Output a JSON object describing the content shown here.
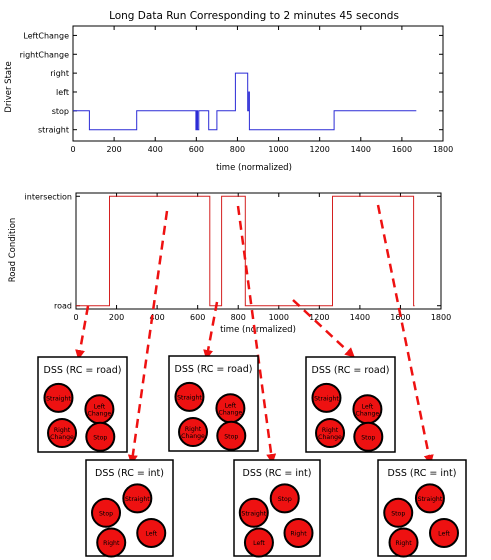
{
  "chart_data": [
    {
      "type": "line",
      "title": "Long Data Run Corresponding to 2 minutes 45 seconds",
      "xlabel": "time (normalized)",
      "ylabel": "Driver State",
      "xlim": [
        0,
        1800
      ],
      "x_ticks": [
        0,
        200,
        400,
        600,
        800,
        1000,
        1200,
        1400,
        1600,
        1800
      ],
      "x_tick_labels": [
        "0",
        "200",
        "400",
        "600",
        "800",
        "1000",
        "1200",
        "1400",
        "1600",
        "1800"
      ],
      "y_categories": [
        "straight",
        "stop",
        "left",
        "right",
        "rightChange",
        "LeftChange"
      ],
      "ylim": [
        -0.6,
        5.5
      ],
      "grid": false,
      "color": "#2b2bd6",
      "series": [
        {
          "points": [
            [
              0,
              1
            ],
            [
              80,
              1
            ],
            [
              80,
              0
            ],
            [
              310,
              0
            ],
            [
              310,
              1
            ],
            [
              598,
              1
            ],
            [
              598,
              0
            ],
            [
              602,
              0
            ],
            [
              602,
              1
            ],
            [
              606,
              1
            ],
            [
              606,
              0
            ],
            [
              612,
              0
            ],
            [
              612,
              1
            ],
            [
              660,
              1
            ],
            [
              660,
              0
            ],
            [
              700,
              0
            ],
            [
              700,
              1
            ],
            [
              790,
              1
            ],
            [
              790,
              3
            ],
            [
              850,
              3
            ],
            [
              850,
              1
            ],
            [
              855,
              1
            ],
            [
              855,
              2
            ],
            [
              858,
              2
            ],
            [
              858,
              0
            ],
            [
              1270,
              0
            ],
            [
              1270,
              1
            ],
            [
              1670,
              1
            ]
          ]
        }
      ]
    },
    {
      "type": "line",
      "title": "",
      "xlabel": "time (normalized)",
      "ylabel": "Road Condition",
      "xlim": [
        0,
        1800
      ],
      "x_ticks": [
        0,
        200,
        400,
        600,
        800,
        1000,
        1200,
        1400,
        1600,
        1800
      ],
      "x_tick_labels": [
        "0",
        "200",
        "400",
        "600",
        "800",
        "1000",
        "1200",
        "1400",
        "1600",
        "1800"
      ],
      "y_categories": [
        "road",
        "intersection"
      ],
      "ylim": [
        -0.03,
        1.03
      ],
      "grid": false,
      "color": "#d42020",
      "series": [
        {
          "points": [
            [
              0,
              0
            ],
            [
              165,
              0
            ],
            [
              165,
              1
            ],
            [
              660,
              1
            ],
            [
              660,
              0
            ],
            [
              718,
              0
            ],
            [
              718,
              1
            ],
            [
              835,
              1
            ],
            [
              835,
              0
            ],
            [
              1265,
              0
            ],
            [
              1265,
              1
            ],
            [
              1665,
              1
            ],
            [
              1665,
              0
            ],
            [
              1670,
              0
            ]
          ]
        }
      ]
    }
  ],
  "dss_boxes": [
    {
      "title": "DSS (RC = road)",
      "circles": [
        "Straight",
        "Left\nChange",
        "Right\nChange",
        "Stop"
      ]
    },
    {
      "title": "DSS (RC = road)",
      "circles": [
        "Straight",
        "Left\nChange",
        "Right\nChange",
        "Stop"
      ]
    },
    {
      "title": "DSS (RC = road)",
      "circles": [
        "Straight",
        "Left\nChange",
        "Right\nChange",
        "Stop"
      ]
    },
    {
      "title": "DSS (RC = int)",
      "circles": [
        "Stop",
        "Straight",
        "Right",
        "Left"
      ]
    },
    {
      "title": "DSS (RC = int)",
      "circles": [
        "Straight",
        "Stop",
        "Left",
        "Right"
      ]
    },
    {
      "title": "DSS (RC = int)",
      "circles": [
        "Stop",
        "Straight",
        "Right",
        "Left"
      ]
    }
  ],
  "colors": {
    "circle_fill": "#ee1111",
    "arrow": "#ee1111"
  }
}
